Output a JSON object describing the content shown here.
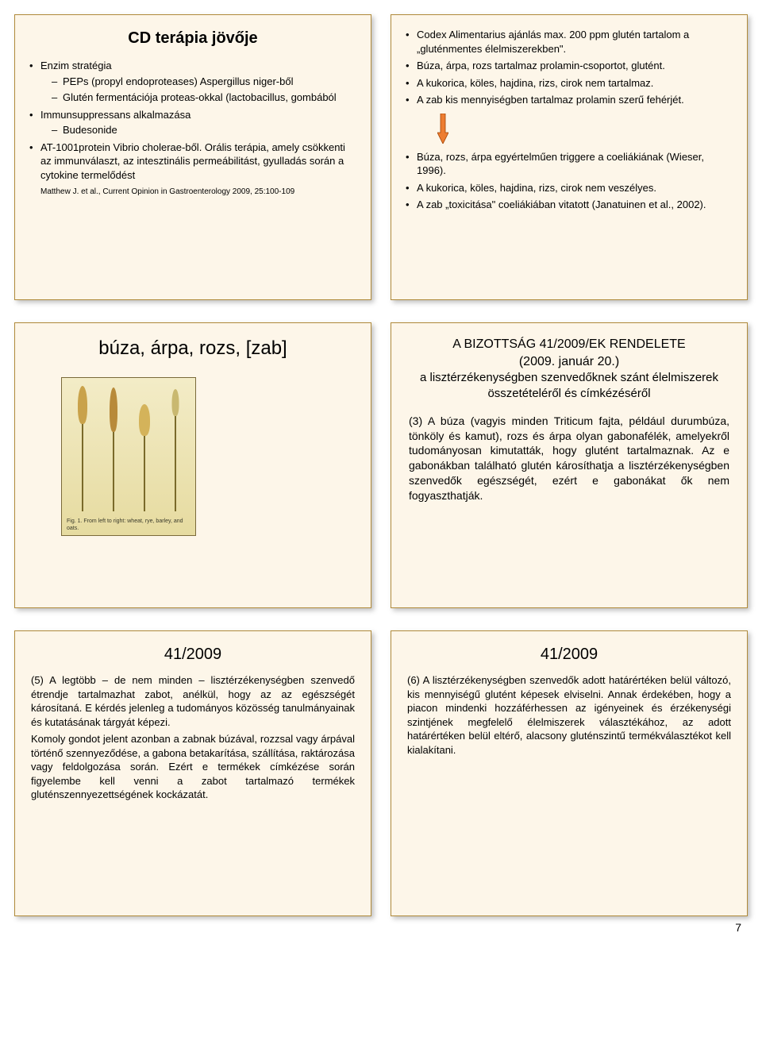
{
  "colors": {
    "slide_bg": "#fdf6e9",
    "slide_border": "#b08a3a",
    "arrow_fill": "#ed7d31",
    "arrow_stroke": "#a04000",
    "wheat_bg_top": "#f3ecc7",
    "wheat_bg_bottom": "#e6dba0",
    "stem": "#7a6a2a"
  },
  "page_number": "7",
  "slides": {
    "s1": {
      "title": "CD terápia jövője",
      "b1": "Enzim stratégia",
      "b1a": "PEPs (propyl endoproteases) Aspergillus niger-ből",
      "b1b": "Glutén fermentációja proteas-okkal (lactobacillus, gombából",
      "b2": "Immunsuppressans alkalmazása",
      "b2a": "Budesonide",
      "b3": "AT-1001protein Vibrio cholerae-ből. Orális terápia, amely csökkenti az immunválaszt, az intesztinális permeábilitást, gyulladás során a cytokine termelődést",
      "cite": "Matthew J. et al., Current Opinion in Gastroenterology 2009, 25:100-109"
    },
    "s2": {
      "a1": "Codex Alimentarius ajánlás max. 200 ppm glutén tartalom a „gluténmentes élelmiszerekben\".",
      "a2": "Búza, árpa, rozs tartalmaz prolamin-csoportot, glutént.",
      "a3": "A kukorica, köles, hajdina, rizs, cirok nem tartalmaz.",
      "a4": "A zab kis mennyiségben tartalmaz prolamin szerű fehérjét.",
      "b1": "Búza, rozs, árpa egyértelműen triggere a coeliákiának (Wieser, 1996).",
      "b2": "A kukorica, köles, hajdina, rizs, cirok nem veszélyes.",
      "b3": "A zab „toxicitása\" coeliákiában vitatott (Janatuinen et al., 2002)."
    },
    "s3": {
      "title": "búza, árpa, rozs, [zab]",
      "caption": "Fig. 1. From left to right: wheat, rye, barley, and oats.",
      "stalks": [
        {
          "stem_h": 110,
          "head_h": 48,
          "head_w": 12,
          "head_color": "#c9a24a"
        },
        {
          "stem_h": 100,
          "head_h": 56,
          "head_w": 10,
          "head_color": "#b88a3a"
        },
        {
          "stem_h": 95,
          "head_h": 40,
          "head_w": 14,
          "head_color": "#d4b35a"
        },
        {
          "stem_h": 120,
          "head_h": 34,
          "head_w": 9,
          "head_color": "#c9b870"
        }
      ]
    },
    "s4": {
      "title1": "A BIZOTTSÁG 41/2009/EK RENDELETE",
      "title2": "(2009. január 20.)",
      "title3": "a lisztérzékenységben szenvedőknek szánt élelmiszerek összetételéről és címkézéséről",
      "para": "(3) A búza (vagyis minden Triticum fajta, például durumbúza, tönköly és kamut), rozs és árpa olyan gabonafélék, amelyekről tudományosan kimutatták, hogy glutént tartalmaznak. Az e gabonákban található glutén károsíthatja a lisztérzékenységben szenvedők egészségét, ezért e gabonákat ők nem fogyaszthatják."
    },
    "s5": {
      "title": "41/2009",
      "p1": "(5) A legtöbb – de nem minden – lisztérzékenységben szenvedő étrendje tartalmazhat zabot, anélkül, hogy az az egészségét károsítaná. E kérdés jelenleg a tudományos közösség tanulmányainak és kutatásának tárgyát képezi.",
      "p2": "Komoly gondot jelent azonban a zabnak búzával, rozzsal vagy árpával történő szennyeződése, a gabona betakarítása, szállítása, raktározása vagy feldolgozása során. Ezért e termékek címkézése során figyelembe kell venni a zabot tartalmazó termékek gluténszennyezettségének kockázatát."
    },
    "s6": {
      "title": "41/2009",
      "p1": "(6) A lisztérzékenységben szenvedők adott határértéken belül változó, kis mennyiségű glutént képesek elviselni. Annak érdekében, hogy a piacon mindenki hozzáférhessen az igényeinek és érzékenységi szintjének megfelelő élelmiszerek választékához, az adott határértéken belül eltérő, alacsony gluténszintű termékválasztékot kell kialakítani."
    }
  }
}
